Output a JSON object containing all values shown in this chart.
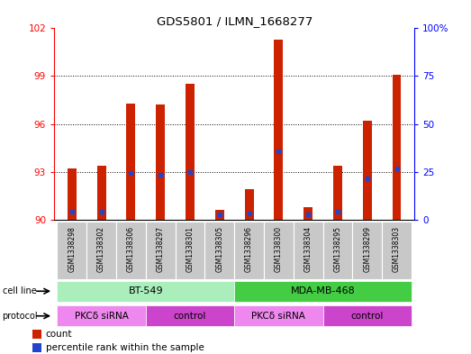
{
  "title": "GDS5801 / ILMN_1668277",
  "samples": [
    "GSM1338298",
    "GSM1338302",
    "GSM1338306",
    "GSM1338297",
    "GSM1338301",
    "GSM1338305",
    "GSM1338296",
    "GSM1338300",
    "GSM1338304",
    "GSM1338295",
    "GSM1338299",
    "GSM1338303"
  ],
  "bar_values": [
    93.2,
    93.4,
    97.3,
    97.2,
    98.5,
    90.6,
    91.9,
    101.3,
    90.8,
    93.4,
    96.2,
    99.1
  ],
  "blue_dot_values": [
    90.5,
    90.5,
    92.9,
    92.8,
    93.0,
    90.3,
    90.4,
    94.3,
    90.3,
    90.5,
    92.6,
    93.2
  ],
  "ymin": 90,
  "ymax": 102,
  "yticks": [
    90,
    93,
    96,
    99,
    102
  ],
  "right_yticks": [
    0,
    25,
    50,
    75,
    100
  ],
  "right_yticklabels": [
    "0",
    "25",
    "50",
    "75",
    "100%"
  ],
  "bar_color": "#CC2200",
  "blue_color": "#2244CC",
  "cell_line_colors": [
    "#AAEEBB",
    "#44CC44"
  ],
  "protocol_color_sirna": "#EE88EE",
  "protocol_color_ctrl": "#CC44CC",
  "sample_bg_color": "#C8C8C8",
  "cell_line_1": "BT-549",
  "cell_line_2": "MDA-MB-468",
  "protocol_1": "PKCδ siRNA",
  "protocol_2": "control",
  "bar_width": 0.3
}
